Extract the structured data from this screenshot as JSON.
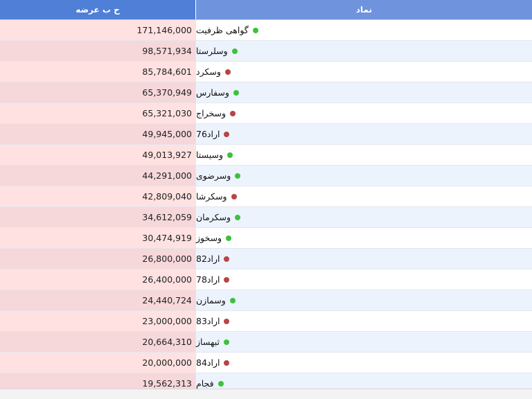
{
  "table": {
    "headers": {
      "volume": "ح ب عرضه",
      "symbol": "نماد"
    },
    "colors": {
      "up": "#3cc13c",
      "down": "#b84444"
    },
    "rows": [
      {
        "symbol": "گواهی ظرفیت",
        "volume": "171,146,000",
        "trend": "up"
      },
      {
        "symbol": "وسلرستا",
        "volume": "98,571,934",
        "trend": "up"
      },
      {
        "symbol": "وسکرد",
        "volume": "85,784,601",
        "trend": "down"
      },
      {
        "symbol": "وسفارس",
        "volume": "65,370,949",
        "trend": "up"
      },
      {
        "symbol": "وسخراج",
        "volume": "65,321,030",
        "trend": "down"
      },
      {
        "symbol": "اراد76",
        "volume": "49,945,000",
        "trend": "down"
      },
      {
        "symbol": "وسیستا",
        "volume": "49,013,927",
        "trend": "up"
      },
      {
        "symbol": "وسرضوی",
        "volume": "44,291,000",
        "trend": "up"
      },
      {
        "symbol": "وسکرشا",
        "volume": "42,809,040",
        "trend": "down"
      },
      {
        "symbol": "وسکرمان",
        "volume": "34,612,059",
        "trend": "up"
      },
      {
        "symbol": "وسخوز",
        "volume": "30,474,919",
        "trend": "up"
      },
      {
        "symbol": "اراد82",
        "volume": "26,800,000",
        "trend": "down"
      },
      {
        "symbol": "اراد78",
        "volume": "26,400,000",
        "trend": "down"
      },
      {
        "symbol": "وسمازن",
        "volume": "24,440,724",
        "trend": "up"
      },
      {
        "symbol": "اراد83",
        "volume": "23,000,000",
        "trend": "down"
      },
      {
        "symbol": "ثبهساز",
        "volume": "20,664,310",
        "trend": "up"
      },
      {
        "symbol": "اراد84",
        "volume": "20,000,000",
        "trend": "down"
      },
      {
        "symbol": "فجام",
        "volume": "19,562,313",
        "trend": "up"
      }
    ]
  }
}
